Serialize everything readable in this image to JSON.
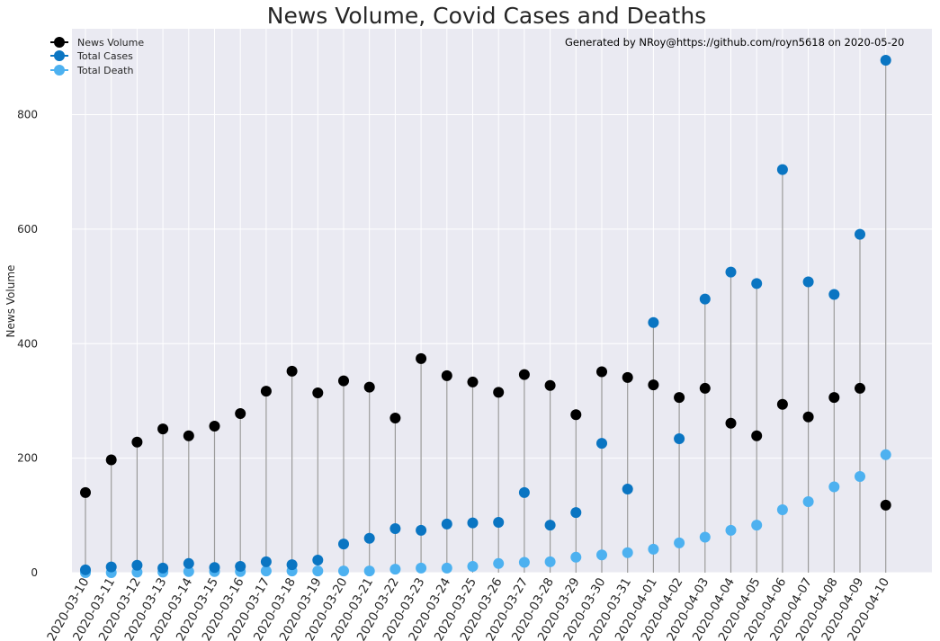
{
  "chart_data": {
    "type": "scatter",
    "title": "News Volume, Covid Cases and Deaths",
    "xlabel": "",
    "ylabel": "News Volume",
    "annotation": "Generated by NRoy@https://github.com/royn5618 on 2020-05-20",
    "ylim": [
      0,
      950
    ],
    "yticks": [
      0,
      200,
      400,
      600,
      800
    ],
    "grid": true,
    "legend_position": "upper left",
    "categories": [
      "2020-03-10",
      "2020-03-11",
      "2020-03-12",
      "2020-03-13",
      "2020-03-14",
      "2020-03-15",
      "2020-03-16",
      "2020-03-17",
      "2020-03-18",
      "2020-03-19",
      "2020-03-20",
      "2020-03-21",
      "2020-03-22",
      "2020-03-23",
      "2020-03-24",
      "2020-03-25",
      "2020-03-26",
      "2020-03-27",
      "2020-03-28",
      "2020-03-29",
      "2020-03-30",
      "2020-03-31",
      "2020-04-01",
      "2020-04-02",
      "2020-04-03",
      "2020-04-04",
      "2020-04-05",
      "2020-04-06",
      "2020-04-07",
      "2020-04-08",
      "2020-04-09",
      "2020-04-10"
    ],
    "series": [
      {
        "name": "News Volume",
        "color": "#000000",
        "values": [
          140,
          197,
          228,
          251,
          239,
          256,
          278,
          317,
          352,
          314,
          335,
          324,
          270,
          374,
          344,
          333,
          315,
          346,
          327,
          276,
          351,
          341,
          328,
          306,
          322,
          261,
          239,
          294,
          272,
          306,
          322,
          118
        ]
      },
      {
        "name": "Total Cases",
        "color": "#0A75C2",
        "values": [
          5,
          10,
          13,
          8,
          16,
          9,
          11,
          19,
          14,
          22,
          50,
          60,
          77,
          74,
          85,
          87,
          88,
          140,
          83,
          105,
          226,
          146,
          437,
          234,
          478,
          525,
          505,
          704,
          508,
          486,
          591,
          895
        ]
      },
      {
        "name": "Total Death",
        "color": "#4DB1F0",
        "values": [
          0,
          0,
          1,
          1,
          2,
          2,
          2,
          3,
          3,
          3,
          3,
          3,
          6,
          8,
          8,
          11,
          16,
          18,
          19,
          27,
          31,
          35,
          41,
          52,
          62,
          74,
          83,
          110,
          124,
          150,
          168,
          206
        ]
      }
    ]
  }
}
